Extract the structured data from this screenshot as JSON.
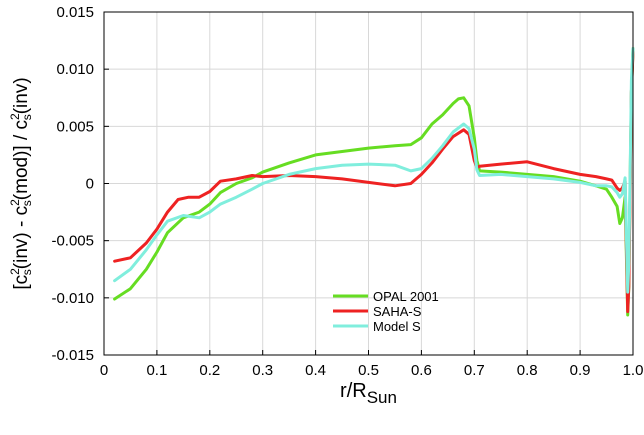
{
  "chart_data": {
    "type": "line",
    "xlabel": "r/R",
    "xlabel_sub": "Sun",
    "ylabel_parts": [
      "[c",
      "2",
      "s",
      "(inv) - c",
      "2",
      "s",
      "(mod)] / c",
      "2",
      "s",
      "(inv)"
    ],
    "xlim": [
      0,
      1.0
    ],
    "ylim": [
      -0.015,
      0.015
    ],
    "x_ticks": [
      0,
      0.1,
      0.2,
      0.3,
      0.4,
      0.5,
      0.6,
      0.7,
      0.8,
      0.9,
      1.0
    ],
    "x_tick_labels": [
      "0",
      "0.1",
      "0.2",
      "0.3",
      "0.4",
      "0.5",
      "0.6",
      "0.7",
      "0.8",
      "0.9",
      "1.0"
    ],
    "y_ticks": [
      -0.015,
      -0.01,
      -0.005,
      0,
      0.005,
      0.01,
      0.015
    ],
    "y_tick_labels": [
      "-0.015",
      "-0.010",
      "-0.005",
      "0",
      "0.005",
      "0.010",
      "0.015"
    ],
    "grid": true,
    "legend_position": "bottom-center",
    "series": [
      {
        "name": "OPAL 2001",
        "color": "#66dd22",
        "x": [
          0.02,
          0.05,
          0.08,
          0.1,
          0.12,
          0.15,
          0.18,
          0.2,
          0.22,
          0.25,
          0.28,
          0.3,
          0.35,
          0.4,
          0.45,
          0.5,
          0.55,
          0.58,
          0.6,
          0.62,
          0.64,
          0.66,
          0.67,
          0.68,
          0.69,
          0.7,
          0.705,
          0.71,
          0.75,
          0.8,
          0.85,
          0.9,
          0.93,
          0.95,
          0.96,
          0.97,
          0.975,
          0.98,
          0.985,
          0.99,
          0.992,
          0.995,
          0.997,
          1.0
        ],
        "y": [
          -0.0101,
          -0.0092,
          -0.0075,
          -0.006,
          -0.0043,
          -0.003,
          -0.0025,
          -0.0018,
          -0.0008,
          0,
          0.0005,
          0.001,
          0.0018,
          0.0025,
          0.0028,
          0.0031,
          0.0033,
          0.0034,
          0.004,
          0.0052,
          0.006,
          0.007,
          0.0074,
          0.0075,
          0.0068,
          0.004,
          0.002,
          0.0011,
          0.001,
          0.0008,
          0.0006,
          0.0002,
          -0.0002,
          -0.0005,
          -0.0012,
          -0.002,
          -0.0035,
          -0.003,
          -0.0012,
          -0.0115,
          -0.009,
          0.002,
          0.008,
          0.0118
        ]
      },
      {
        "name": "SAHA-S",
        "color": "#ee2222",
        "x": [
          0.02,
          0.05,
          0.08,
          0.1,
          0.12,
          0.14,
          0.16,
          0.18,
          0.2,
          0.22,
          0.25,
          0.28,
          0.3,
          0.35,
          0.4,
          0.45,
          0.5,
          0.55,
          0.58,
          0.6,
          0.62,
          0.64,
          0.66,
          0.68,
          0.69,
          0.7,
          0.705,
          0.71,
          0.75,
          0.8,
          0.85,
          0.9,
          0.93,
          0.95,
          0.96,
          0.97,
          0.975,
          0.98,
          0.985,
          0.99,
          0.992,
          0.995,
          0.997,
          1.0
        ],
        "y": [
          -0.0068,
          -0.0065,
          -0.0052,
          -0.004,
          -0.0025,
          -0.0014,
          -0.0012,
          -0.0012,
          -0.0007,
          0.0002,
          0.0004,
          0.0007,
          0.0006,
          0.0007,
          0.0006,
          0.0004,
          0.0001,
          -0.0002,
          0,
          0.0008,
          0.0018,
          0.003,
          0.0041,
          0.0047,
          0.0043,
          0.002,
          0.0014,
          0.0015,
          0.0017,
          0.0019,
          0.0013,
          0.0008,
          0.0006,
          0.0004,
          0.0003,
          -0.0004,
          -0.0006,
          -0.0004,
          0.0002,
          -0.0112,
          -0.009,
          0.001,
          0.008,
          0.0115
        ]
      },
      {
        "name": "Model S",
        "color": "#80eedd",
        "x": [
          0.02,
          0.05,
          0.08,
          0.1,
          0.12,
          0.15,
          0.18,
          0.2,
          0.22,
          0.25,
          0.28,
          0.3,
          0.35,
          0.4,
          0.45,
          0.5,
          0.55,
          0.58,
          0.6,
          0.62,
          0.64,
          0.66,
          0.68,
          0.69,
          0.7,
          0.705,
          0.71,
          0.75,
          0.8,
          0.85,
          0.9,
          0.93,
          0.95,
          0.96,
          0.97,
          0.975,
          0.98,
          0.985,
          0.99,
          0.992,
          0.995,
          0.997,
          1.0
        ],
        "y": [
          -0.0085,
          -0.0075,
          -0.0058,
          -0.0045,
          -0.0033,
          -0.0028,
          -0.003,
          -0.0025,
          -0.0018,
          -0.0012,
          -0.0005,
          0,
          0.0008,
          0.0013,
          0.0016,
          0.0017,
          0.0016,
          0.0011,
          0.0013,
          0.0022,
          0.0033,
          0.0045,
          0.0052,
          0.0048,
          0.003,
          0.0012,
          0.0007,
          0.0008,
          0.0006,
          0.0004,
          0.0001,
          -0.0002,
          -0.0002,
          -0.0003,
          -0.0008,
          -0.0012,
          -0.0009,
          0.0005,
          -0.0095,
          -0.007,
          0.0025,
          0.009,
          0.0118
        ]
      }
    ]
  }
}
